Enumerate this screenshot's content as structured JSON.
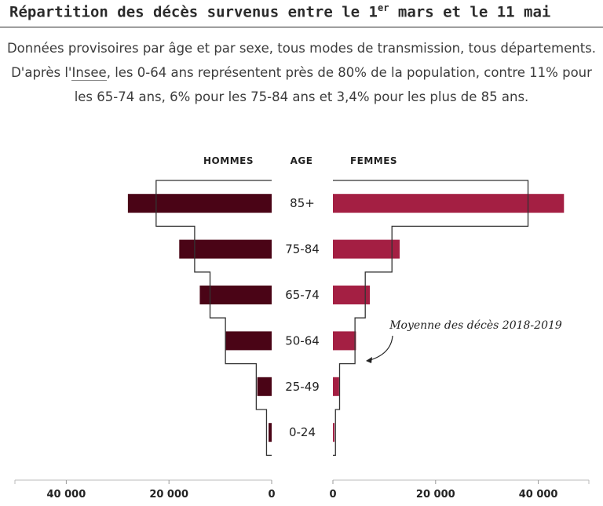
{
  "title": {
    "before": "Répartition des décès survenus entre le 1",
    "sup": "er",
    "after": " mars et le 11 mai"
  },
  "subtitle": {
    "part1": "Données provisoires par âge et par sexe, tous modes de transmission, tous départements. D'après l'",
    "link": "Insee",
    "part2": ", les 0-64 ans représentent près de 80% de la population, contre 11% pour les 65-74 ans, 6% pour les 75-84 ans et 3,4% pour les plus de 85 ans."
  },
  "chart_data": {
    "type": "bar",
    "orientation": "horizontal-population-pyramid",
    "headers": {
      "men": "HOMMES",
      "age": "AGE",
      "women": "FEMMES"
    },
    "categories": [
      "85+",
      "75-84",
      "65-74",
      "50-64",
      "25-49",
      "0-24"
    ],
    "series": [
      {
        "name": "HOMMES",
        "color": "#4a0416",
        "values": [
          28000,
          18000,
          14000,
          9000,
          2800,
          600
        ]
      },
      {
        "name": "FEMMES",
        "color": "#a41f43",
        "values": [
          45000,
          13000,
          7200,
          4500,
          1200,
          300
        ]
      }
    ],
    "average_2018_2019": {
      "label": "Moyenne des décès 2018-2019",
      "men": [
        22500,
        15000,
        12000,
        9000,
        3000,
        1000
      ],
      "women": [
        38000,
        11500,
        6300,
        4300,
        1300,
        500
      ]
    },
    "x_axis": {
      "range": [
        0,
        50000
      ],
      "left_ticks": [
        {
          "value": 40000,
          "label": "40 000"
        },
        {
          "value": 20000,
          "label": "20 000"
        },
        {
          "value": 0,
          "label": "0"
        }
      ],
      "right_ticks": [
        {
          "value": 0,
          "label": "0"
        },
        {
          "value": 20000,
          "label": "20 000"
        },
        {
          "value": 40000,
          "label": "40 000"
        }
      ]
    },
    "legend": "none",
    "grid": false
  }
}
